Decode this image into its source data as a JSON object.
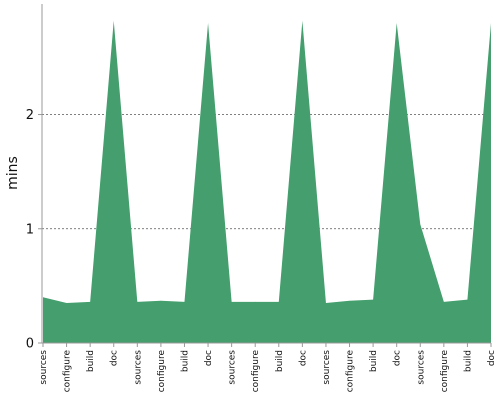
{
  "chart_data": {
    "type": "area",
    "title": "",
    "xlabel": "",
    "ylabel": "mins",
    "ylim": [
      0,
      2.95
    ],
    "yticks": [
      0,
      1,
      2
    ],
    "ytick_labels": [
      "0",
      "1",
      "2"
    ],
    "grid": "horizontal dashed at y ticks",
    "legend": "none",
    "fill_color": "#449e6d",
    "categories": [
      "sources",
      "configure",
      "build",
      "doc",
      "sources",
      "configure",
      "build",
      "doc",
      "sources",
      "configure",
      "build",
      "doc",
      "sources",
      "configure",
      "build",
      "doc",
      "sources",
      "configure",
      "build",
      "doc"
    ],
    "values": [
      0.4,
      0.35,
      0.36,
      2.82,
      0.36,
      0.37,
      0.36,
      2.8,
      0.36,
      0.36,
      0.36,
      2.82,
      0.35,
      0.37,
      0.38,
      2.8,
      1.04,
      0.36,
      0.38,
      2.8
    ]
  }
}
